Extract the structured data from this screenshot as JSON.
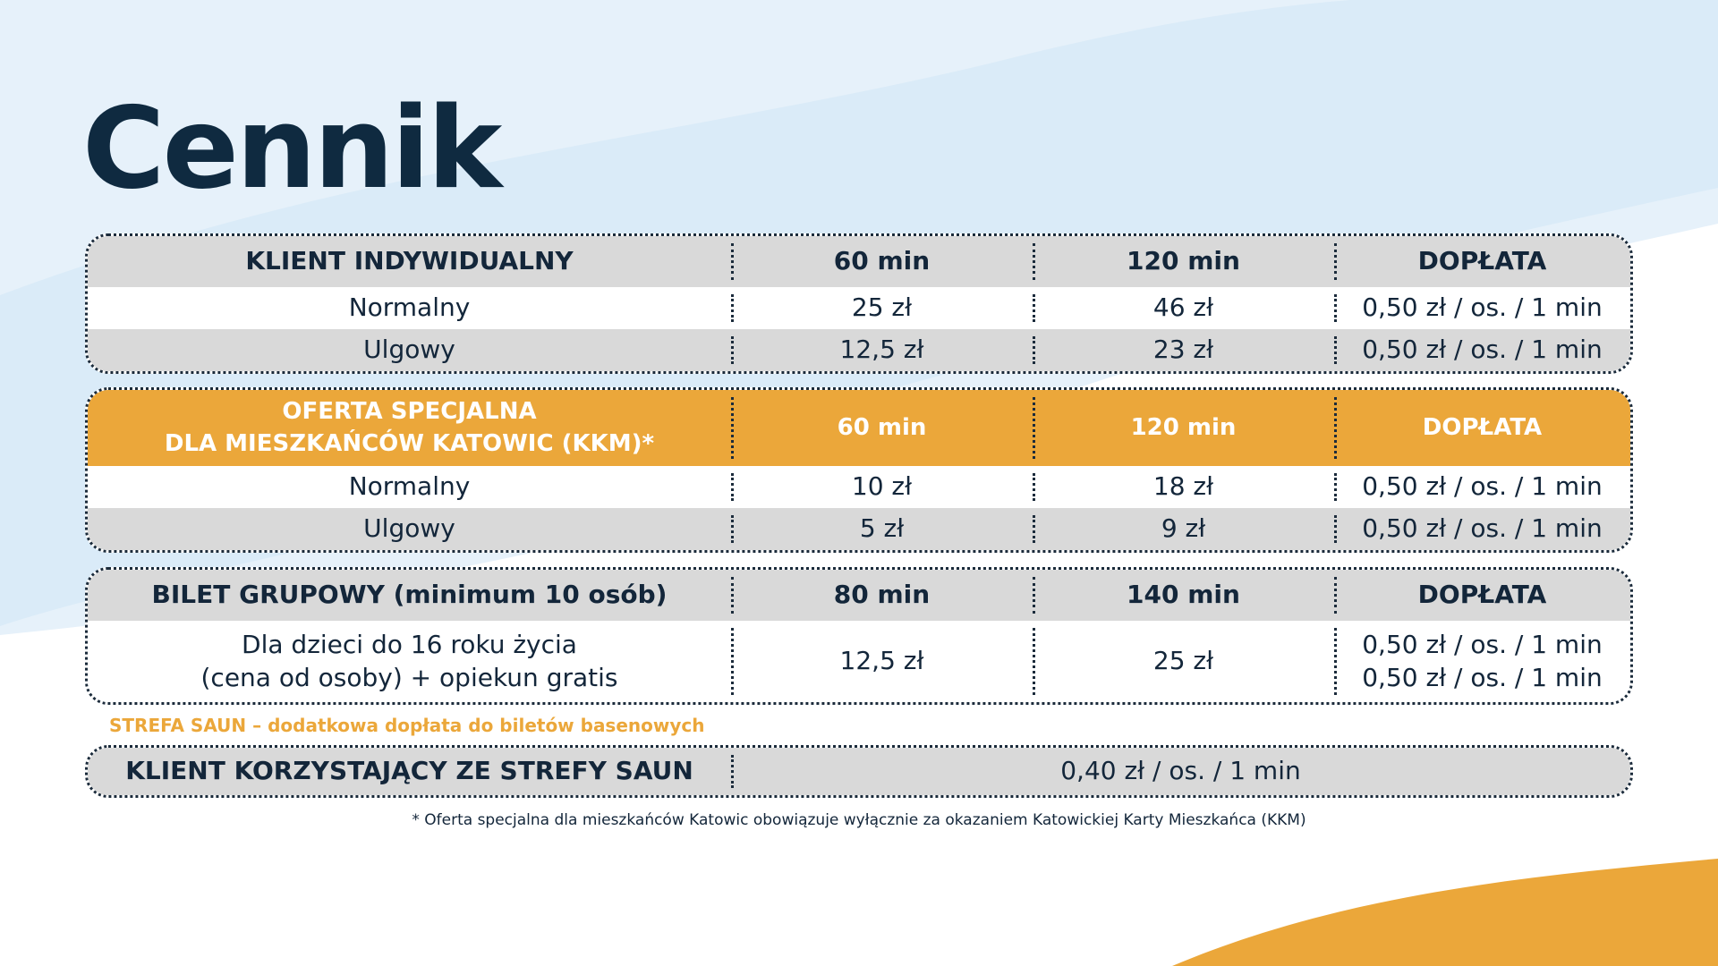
{
  "header": {
    "title": "Cennik"
  },
  "blocks": [
    {
      "header": [
        "KLIENT INDYWIDUALNY",
        "60 min",
        "120 min",
        "DOPŁATA"
      ],
      "rows": [
        [
          "Normalny",
          "25 zł",
          "46 zł",
          "0,50 zł / os. / 1 min"
        ],
        [
          "Ulgowy",
          "12,5 zł",
          "23 zł",
          "0,50 zł / os. / 1 min"
        ]
      ]
    },
    {
      "header": [
        "OFERTA SPECJALNA\nDLA MIESZKAŃCÓW KATOWIC (KKM)*",
        "60 min",
        "120 min",
        "DOPŁATA"
      ],
      "rows": [
        [
          "Normalny",
          "10 zł",
          "18 zł",
          "0,50 zł / os. / 1 min"
        ],
        [
          "Ulgowy",
          "5 zł",
          "9 zł",
          "0,50 zł / os. / 1 min"
        ]
      ]
    },
    {
      "header": [
        "BILET GRUPOWY (minimum 10 osób)",
        "80 min",
        "140 min",
        "DOPŁATA"
      ],
      "rows": [
        [
          "Dla dzieci do 16 roku życia\n(cena od osoby) + opiekun gratis",
          "12,5 zł",
          "25 zł",
          "0,50 zł / os. / 1 min\n0,50 zł / os. / 1 min"
        ]
      ]
    }
  ],
  "sauna": {
    "note": "STREFA SAUN – dodatkowa dopłata do biletów basenowych",
    "label": "KLIENT KORZYSTAJĄCY ZE STREFY SAUN",
    "price": "0,40  zł  / os. / 1 min"
  },
  "footnote": "* Oferta specjalna dla mieszkańców Katowic obowiązuje wyłącznie za okazaniem Katowickiej Karty Mieszkańca (KKM)"
}
